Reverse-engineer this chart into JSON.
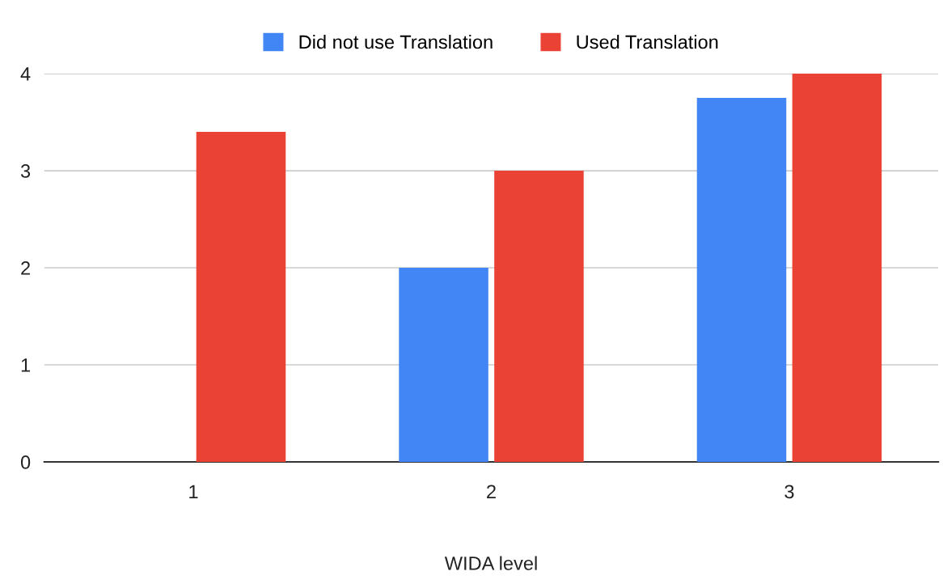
{
  "chart_data": {
    "type": "bar",
    "xlabel": "WIDA level",
    "categories": [
      "1",
      "2",
      "3"
    ],
    "series": [
      {
        "name": "Did not use Translation",
        "color": "#4285f4",
        "values": [
          null,
          2,
          3.75
        ]
      },
      {
        "name": "Used Translation",
        "color": "#ea4335",
        "values": [
          3.4,
          3,
          4
        ]
      }
    ],
    "ylim": [
      0,
      4
    ],
    "yticks": [
      0,
      1,
      2,
      3,
      4
    ],
    "grid": "y",
    "legend": "top"
  }
}
